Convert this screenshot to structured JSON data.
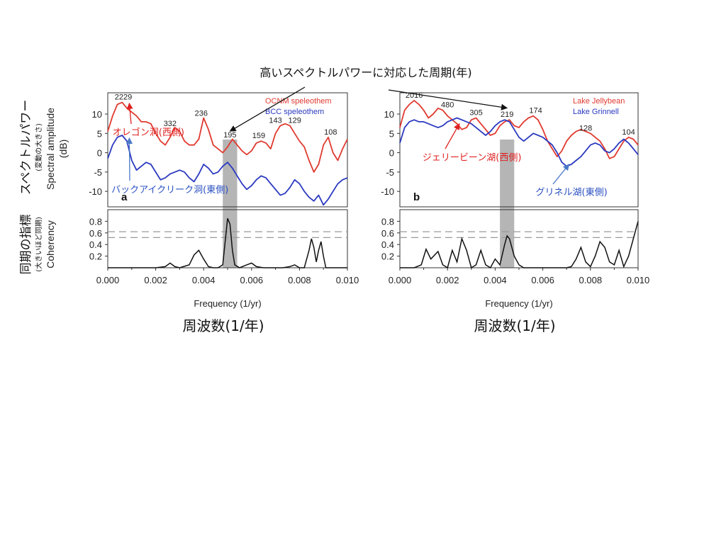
{
  "main_title": "高いスペクトルパワーに対応した周期(年)",
  "ylabel_upper_jp": "スペクトルパワー",
  "ylabel_upper_jp_sub": "(変動の大きさ)",
  "ylabel_upper_en": "Spectral amplitude",
  "ylabel_upper_unit": "(dB)",
  "ylabel_lower_jp": "同期の指標",
  "ylabel_lower_jp_sub": "(大きいほど同期)",
  "ylabel_lower_en": "Coherency",
  "chart_data": [
    {
      "type": "line",
      "panel_label": "a",
      "xlabel": "Frequency (1/yr)",
      "xlabel_jp": "周波数(1/年)",
      "xlim": [
        0.0,
        0.01
      ],
      "xticks": [
        "0.000",
        "0.002",
        "0.004",
        "0.006",
        "0.008",
        "0.010"
      ],
      "ylim": [
        -14,
        15.5
      ],
      "yticks": [
        "10",
        "5",
        "0",
        "-5",
        "-10"
      ],
      "coh_ylim": [
        0.0,
        1.0
      ],
      "coh_yticks": [
        "0.8",
        "0.6",
        "0.4",
        "0.2"
      ],
      "coh_thresholds": [
        0.62,
        0.52
      ],
      "shade": [
        0.0048,
        0.0054
      ],
      "legend": [
        {
          "name": "OCNM speleothem",
          "color": "#e03a30"
        },
        {
          "name": "BCC speleothem",
          "color": "#2a39c0"
        }
      ],
      "series": [
        {
          "name": "OCNM speleothem",
          "color": "#e03a30",
          "x": [
            0.0,
            0.0002,
            0.0004,
            0.0006,
            0.0008,
            0.001,
            0.0012,
            0.0014,
            0.0016,
            0.0018,
            0.002,
            0.0022,
            0.0024,
            0.0026,
            0.0028,
            0.003,
            0.0032,
            0.0034,
            0.0036,
            0.0038,
            0.004,
            0.0042,
            0.0044,
            0.0046,
            0.0048,
            0.005,
            0.0052,
            0.0054,
            0.0056,
            0.0058,
            0.006,
            0.0062,
            0.0064,
            0.0066,
            0.0068,
            0.007,
            0.0072,
            0.0074,
            0.0076,
            0.0078,
            0.008,
            0.0082,
            0.0084,
            0.0086,
            0.0088,
            0.009,
            0.0092,
            0.0094,
            0.0096,
            0.0098,
            0.01
          ],
          "y": [
            5.5,
            9.5,
            12.5,
            13.0,
            11.5,
            10.5,
            9.5,
            8.0,
            8.0,
            7.5,
            5.0,
            3.0,
            2.0,
            4.0,
            6.5,
            5.5,
            3.0,
            2.0,
            2.0,
            3.5,
            9.0,
            6.0,
            2.0,
            1.0,
            0.0,
            1.5,
            3.5,
            2.0,
            0.5,
            -0.5,
            0.5,
            2.5,
            3.0,
            2.5,
            1.0,
            5.0,
            7.0,
            7.5,
            7.0,
            5.0,
            3.0,
            1.5,
            -2.0,
            -5.0,
            -3.0,
            2.0,
            4.0,
            0.0,
            -2.0,
            1.0,
            3.5
          ]
        },
        {
          "name": "BCC speleothem",
          "color": "#2a39c0",
          "x": [
            0.0,
            0.0002,
            0.0004,
            0.0006,
            0.0008,
            0.001,
            0.0012,
            0.0014,
            0.0016,
            0.0018,
            0.002,
            0.0022,
            0.0024,
            0.0026,
            0.0028,
            0.003,
            0.0032,
            0.0034,
            0.0036,
            0.0038,
            0.004,
            0.0042,
            0.0044,
            0.0046,
            0.0048,
            0.005,
            0.0052,
            0.0054,
            0.0056,
            0.0058,
            0.006,
            0.0062,
            0.0064,
            0.0066,
            0.0068,
            0.007,
            0.0072,
            0.0074,
            0.0076,
            0.0078,
            0.008,
            0.0082,
            0.0084,
            0.0086,
            0.0088,
            0.009,
            0.0092,
            0.0094,
            0.0096,
            0.0098,
            0.01
          ],
          "y": [
            -1.5,
            2.0,
            4.0,
            4.5,
            3.0,
            -2.0,
            -4.5,
            -3.5,
            -2.5,
            -3.0,
            -5.0,
            -7.0,
            -6.5,
            -5.5,
            -5.0,
            -4.5,
            -5.0,
            -6.5,
            -7.5,
            -5.5,
            -3.0,
            -4.0,
            -5.5,
            -5.0,
            -3.5,
            -2.5,
            -4.0,
            -6.0,
            -8.0,
            -9.5,
            -8.5,
            -7.0,
            -6.0,
            -6.5,
            -8.0,
            -9.5,
            -11.0,
            -10.5,
            -9.0,
            -7.0,
            -8.0,
            -10.0,
            -11.5,
            -12.5,
            -11.0,
            -13.5,
            -12.0,
            -10.0,
            -8.0,
            -7.0,
            -6.5
          ]
        }
      ],
      "coherency": {
        "x": [
          0.0,
          0.0005,
          0.001,
          0.0015,
          0.002,
          0.0024,
          0.0026,
          0.0028,
          0.003,
          0.0034,
          0.0036,
          0.0038,
          0.004,
          0.0042,
          0.0044,
          0.0046,
          0.0048,
          0.0049,
          0.005,
          0.0051,
          0.0052,
          0.0053,
          0.0055,
          0.0058,
          0.006,
          0.0062,
          0.0065,
          0.0068,
          0.007,
          0.0073,
          0.0076,
          0.0078,
          0.008,
          0.0082,
          0.0084,
          0.0085,
          0.0086,
          0.0087,
          0.0088,
          0.0089,
          0.009,
          0.0091,
          0.0093,
          0.0095,
          0.0098,
          0.01
        ],
        "y": [
          0.0,
          0.0,
          0.0,
          0.0,
          0.0,
          0.02,
          0.08,
          0.02,
          0.0,
          0.05,
          0.22,
          0.3,
          0.15,
          0.02,
          0.0,
          0.0,
          0.05,
          0.45,
          0.85,
          0.75,
          0.3,
          0.05,
          0.0,
          0.05,
          0.08,
          0.02,
          0.0,
          0.0,
          0.0,
          0.0,
          0.02,
          0.05,
          0.0,
          0.0,
          0.3,
          0.5,
          0.35,
          0.1,
          0.3,
          0.45,
          0.2,
          0.0,
          0.0,
          0.0,
          0.0,
          0.0
        ]
      },
      "peaks": [
        {
          "label": "2229",
          "x": 0.00065,
          "y": 13.0
        },
        {
          "label": "332",
          "x": 0.0026,
          "y": 6.2
        },
        {
          "label": "236",
          "x": 0.0039,
          "y": 8.8
        },
        {
          "label": "195",
          "x": 0.0051,
          "y": 3.2
        },
        {
          "label": "159",
          "x": 0.0063,
          "y": 3.0
        },
        {
          "label": "143",
          "x": 0.007,
          "y": 7.0
        },
        {
          "label": "129",
          "x": 0.0078,
          "y": 7.0
        },
        {
          "label": "108",
          "x": 0.0093,
          "y": 4.0
        }
      ],
      "annotations": [
        {
          "text": "オレゴン洞(西側)",
          "color": "#e02020",
          "tx": 0.0002,
          "ty": 4.5,
          "ax": 0.0009,
          "ay": 12.8
        },
        {
          "text": "バックアイクリーク洞(東側)",
          "color": "#2a50c0",
          "tx": 0.00015,
          "ty": -10.3,
          "ax": 0.0009,
          "ay": 3.8
        }
      ]
    },
    {
      "type": "line",
      "panel_label": "b",
      "xlabel": "Frequency (1/yr)",
      "xlabel_jp": "周波数(1/年)",
      "xlim": [
        0.0,
        0.01
      ],
      "xticks": [
        "0.000",
        "0.002",
        "0.004",
        "0.006",
        "0.008",
        "0.010"
      ],
      "ylim": [
        -14,
        15.5
      ],
      "yticks": [
        "10",
        "5",
        "0",
        "-5",
        "-10"
      ],
      "coh_ylim": [
        0.0,
        1.0
      ],
      "coh_yticks": [
        "0.8",
        "0.6",
        "0.4",
        "0.2"
      ],
      "coh_thresholds": [
        0.62,
        0.52
      ],
      "shade": [
        0.0042,
        0.0048
      ],
      "legend": [
        {
          "name": "Lake Jellybean",
          "color": "#e03a30"
        },
        {
          "name": "Lake Grinnell",
          "color": "#2a39c0"
        }
      ],
      "series": [
        {
          "name": "Lake Jellybean",
          "color": "#e03a30",
          "x": [
            0.0,
            0.0002,
            0.0004,
            0.0006,
            0.0008,
            0.001,
            0.0012,
            0.0014,
            0.0016,
            0.0018,
            0.002,
            0.0022,
            0.0024,
            0.0026,
            0.0028,
            0.003,
            0.0032,
            0.0034,
            0.0036,
            0.0038,
            0.004,
            0.0042,
            0.0044,
            0.0046,
            0.0048,
            0.005,
            0.0052,
            0.0054,
            0.0056,
            0.0058,
            0.006,
            0.0062,
            0.0064,
            0.0066,
            0.0068,
            0.007,
            0.0072,
            0.0074,
            0.0076,
            0.0078,
            0.008,
            0.0082,
            0.0084,
            0.0086,
            0.0088,
            0.009,
            0.0092,
            0.0094,
            0.0096,
            0.0098,
            0.01
          ],
          "y": [
            6.5,
            11.0,
            12.5,
            13.5,
            12.5,
            11.0,
            9.0,
            10.0,
            11.5,
            11.0,
            9.5,
            8.5,
            7.5,
            6.0,
            6.5,
            8.5,
            9.0,
            7.5,
            6.0,
            4.5,
            5.0,
            7.0,
            8.0,
            8.5,
            7.0,
            6.5,
            8.0,
            9.0,
            9.5,
            8.5,
            6.0,
            3.0,
            1.0,
            -1.0,
            0.5,
            3.0,
            4.5,
            5.5,
            6.0,
            5.5,
            5.0,
            4.0,
            3.0,
            1.0,
            -1.5,
            -1.0,
            1.0,
            3.0,
            4.0,
            3.5,
            2.0
          ]
        },
        {
          "name": "Lake Grinnell",
          "color": "#2a39c0",
          "x": [
            0.0,
            0.0002,
            0.0004,
            0.0006,
            0.0008,
            0.001,
            0.0012,
            0.0014,
            0.0016,
            0.0018,
            0.002,
            0.0022,
            0.0024,
            0.0026,
            0.0028,
            0.003,
            0.0032,
            0.0034,
            0.0036,
            0.0038,
            0.004,
            0.0042,
            0.0044,
            0.0046,
            0.0048,
            0.005,
            0.0052,
            0.0054,
            0.0056,
            0.0058,
            0.006,
            0.0062,
            0.0064,
            0.0066,
            0.0068,
            0.007,
            0.0072,
            0.0074,
            0.0076,
            0.0078,
            0.008,
            0.0082,
            0.0084,
            0.0086,
            0.0088,
            0.009,
            0.0092,
            0.0094,
            0.0096,
            0.0098,
            0.01
          ],
          "y": [
            2.5,
            6.5,
            8.0,
            8.5,
            8.0,
            8.0,
            7.5,
            7.0,
            6.5,
            7.0,
            8.0,
            8.5,
            9.0,
            8.5,
            8.0,
            7.5,
            6.5,
            5.5,
            4.5,
            5.5,
            7.0,
            8.0,
            8.5,
            8.0,
            6.0,
            4.0,
            3.0,
            4.0,
            5.0,
            4.5,
            4.0,
            3.0,
            2.0,
            0.0,
            -2.5,
            -3.5,
            -3.0,
            -2.0,
            -1.0,
            0.5,
            2.0,
            2.5,
            2.0,
            0.5,
            0.0,
            1.0,
            2.5,
            3.5,
            2.5,
            1.0,
            -0.5
          ]
        }
      ],
      "coherency": {
        "x": [
          0.0,
          0.0006,
          0.0009,
          0.0011,
          0.0013,
          0.0016,
          0.0018,
          0.002,
          0.0022,
          0.0024,
          0.0026,
          0.0028,
          0.003,
          0.0032,
          0.0034,
          0.0036,
          0.0038,
          0.004,
          0.0042,
          0.0044,
          0.0045,
          0.0046,
          0.0048,
          0.005,
          0.0052,
          0.0055,
          0.0058,
          0.006,
          0.0065,
          0.007,
          0.0072,
          0.0074,
          0.0076,
          0.0078,
          0.008,
          0.0082,
          0.0084,
          0.0086,
          0.0088,
          0.009,
          0.0092,
          0.0094,
          0.0096,
          0.0098,
          0.01
        ],
        "y": [
          0.0,
          0.0,
          0.05,
          0.32,
          0.15,
          0.28,
          0.05,
          0.0,
          0.3,
          0.1,
          0.5,
          0.3,
          0.0,
          0.05,
          0.3,
          0.05,
          0.0,
          0.15,
          0.05,
          0.4,
          0.55,
          0.5,
          0.2,
          0.05,
          0.0,
          0.0,
          0.0,
          0.0,
          0.0,
          0.0,
          0.02,
          0.15,
          0.35,
          0.1,
          0.02,
          0.2,
          0.45,
          0.35,
          0.1,
          0.05,
          0.3,
          0.02,
          0.2,
          0.5,
          0.8
        ]
      },
      "peaks": [
        {
          "label": "2016",
          "x": 0.0006,
          "y": 13.5
        },
        {
          "label": "480",
          "x": 0.002,
          "y": 11.0
        },
        {
          "label": "305",
          "x": 0.0032,
          "y": 9.0
        },
        {
          "label": "219",
          "x": 0.0045,
          "y": 8.5
        },
        {
          "label": "174",
          "x": 0.0057,
          "y": 9.5
        },
        {
          "label": "128",
          "x": 0.0078,
          "y": 5.0
        },
        {
          "label": "104",
          "x": 0.0096,
          "y": 4.0
        }
      ],
      "annotations": [
        {
          "text": "ジェリービーン湖(西側)",
          "color": "#e02020",
          "tx": 0.00095,
          "ty": -2.0,
          "ax": 0.0025,
          "ay": 7.5
        },
        {
          "text": "グリネル湖(東側)",
          "color": "#2a50c0",
          "tx": 0.0057,
          "ty": -11.0,
          "ax": 0.0071,
          "ay": -3.0
        }
      ]
    }
  ],
  "pointer_arrows": [
    {
      "panel": 0,
      "x": 0.0051,
      "y": 5.2
    },
    {
      "panel": 1,
      "x": 0.0045,
      "y": 11.2
    }
  ]
}
